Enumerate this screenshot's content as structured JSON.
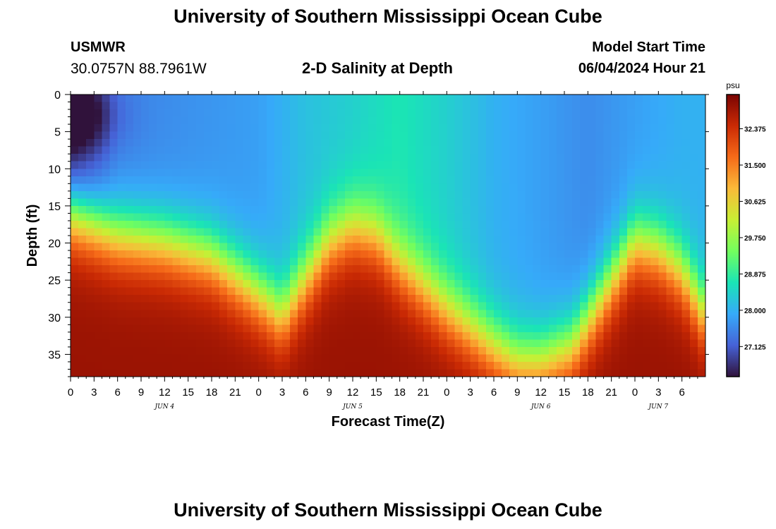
{
  "header": {
    "title": "University of Southern Mississippi Ocean Cube",
    "station": "USMWR",
    "coordinates": "30.0757N  88.7961W",
    "subtitle": "2-D Salinity at Depth",
    "model_start_label": "Model Start Time",
    "model_start_value": "06/04/2024 Hour 21"
  },
  "footer": {
    "title": "University of Southern Mississippi Ocean Cube"
  },
  "chart_data": {
    "type": "heatmap",
    "title": "2-D Salinity at Depth",
    "xlabel": "Forecast Time(Z)",
    "ylabel": "Depth (ft)",
    "xlim": [
      0,
      81
    ],
    "ylim": [
      0,
      38
    ],
    "y_inverted": true,
    "x_tick_labels": [
      "0",
      "3",
      "6",
      "9",
      "12",
      "15",
      "18",
      "21",
      "0",
      "3",
      "6",
      "9",
      "12",
      "15",
      "18",
      "21",
      "0",
      "3",
      "6",
      "9",
      "12",
      "15",
      "18",
      "21",
      "0",
      "3",
      "6"
    ],
    "y_ticks": [
      0,
      5,
      10,
      15,
      20,
      25,
      30,
      35
    ],
    "day_labels": [
      {
        "label": "JUN 4",
        "hour": 12
      },
      {
        "label": "JUN 5",
        "hour": 36
      },
      {
        "label": "JUN 6",
        "hour": 60
      },
      {
        "label": "JUN 7",
        "hour": 75
      }
    ],
    "colorbar": {
      "unit": "psu",
      "min": 26.4,
      "max": 33.2,
      "ticks": [
        27.125,
        28.0,
        28.875,
        29.75,
        30.625,
        31.5,
        32.375
      ],
      "tick_labels": [
        "27.125",
        "28.000",
        "28.875",
        "29.750",
        "30.625",
        "31.500",
        "32.375"
      ],
      "colormap": [
        "#30123b",
        "#4662d7",
        "#36aaf9",
        "#1ae4b6",
        "#72fe5e",
        "#c8ef34",
        "#faba39",
        "#f66b19",
        "#ca2a04",
        "#7a0403"
      ]
    },
    "halocline_depth_ft": {
      "hours": [
        0,
        6,
        12,
        18,
        24,
        27,
        30,
        33,
        36,
        39,
        42,
        48,
        54,
        57,
        60,
        64,
        68,
        72,
        75,
        78,
        81
      ],
      "values": [
        16,
        19,
        20,
        22,
        27,
        30,
        25,
        20,
        18,
        19,
        23,
        29,
        34,
        36,
        36,
        34,
        27,
        20,
        21,
        24,
        30
      ]
    },
    "surface_salinity_psu": {
      "hours": [
        0,
        6,
        12,
        18,
        24,
        30,
        36,
        42,
        48,
        54,
        60,
        66,
        72,
        78,
        81
      ],
      "values": [
        26.5,
        27.5,
        27.6,
        27.7,
        27.8,
        28.2,
        28.4,
        28.7,
        28.4,
        28.0,
        27.8,
        27.6,
        27.8,
        28.0,
        28.0
      ]
    },
    "bottom_salinity_psu": 32.9
  }
}
